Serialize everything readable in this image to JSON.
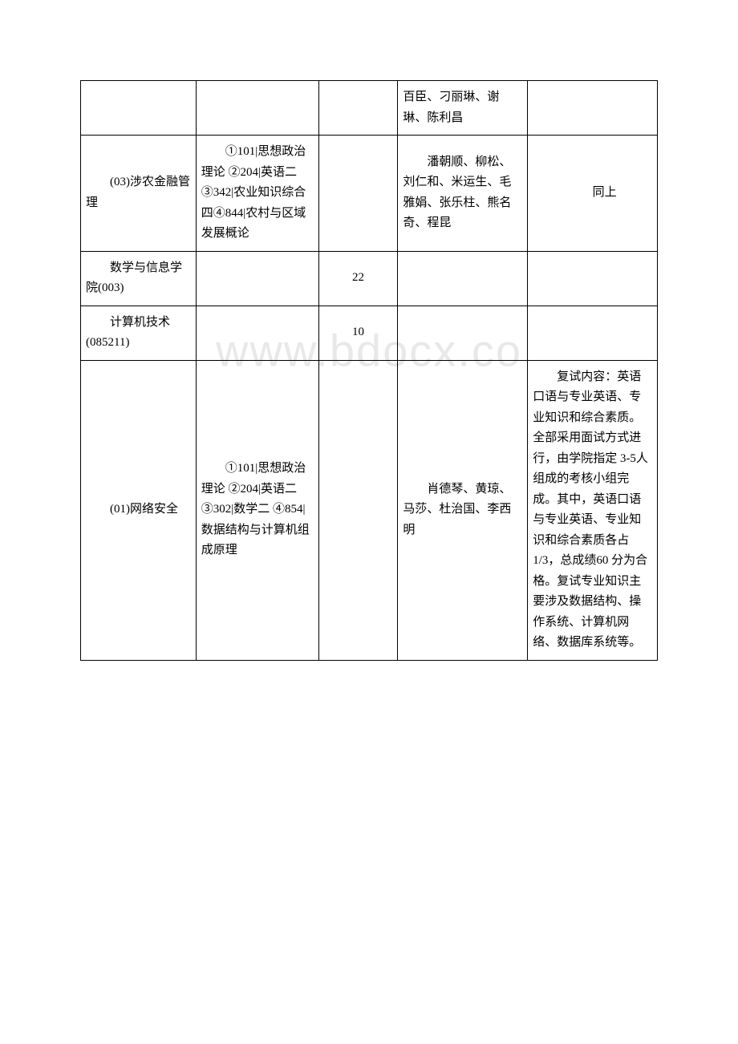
{
  "watermark": "www.bdocx.co",
  "table": {
    "rows": [
      {
        "col1": "",
        "col2": "",
        "col3": "",
        "col4": "百臣、刁丽琳、谢琳、陈利昌",
        "col5": ""
      },
      {
        "col1": "　　(03)涉农金融管理",
        "col2": "　　①101|思想政治理论 ②204|英语二 ③342|农业知识综合四④844|农村与区域发展概论",
        "col3": "",
        "col4": "　　潘朝顺、柳松、刘仁和、米运生、毛雅娟、张乐柱、熊名奇、程昆",
        "col5": "　　同上"
      },
      {
        "col1": "　　数学与信息学院(003)",
        "col2": "",
        "col3": "22",
        "col4": "",
        "col5": ""
      },
      {
        "col1": "　　计算机技术(085211)",
        "col2": "",
        "col3": "10",
        "col4": "",
        "col5": ""
      },
      {
        "col1": "　　(01)网络安全",
        "col2": "　　①101|思想政治理论 ②204|英语二 ③302|数学二 ④854|数据结构与计算机组成原理",
        "col3": "",
        "col4": "　　肖德琴、黄琼、马莎、杜治国、李西明",
        "col5": "　　复试内容：英语口语与专业英语、专业知识和综合素质。全部采用面试方式进行，由学院指定 3-5人组成的考核小组完成。其中，英语口语与专业英语、专业知识和综合素质各占1/3，总成绩60 分为合格。复试专业知识主要涉及数据结构、操作系统、计算机网络、数据库系统等。"
      }
    ]
  }
}
